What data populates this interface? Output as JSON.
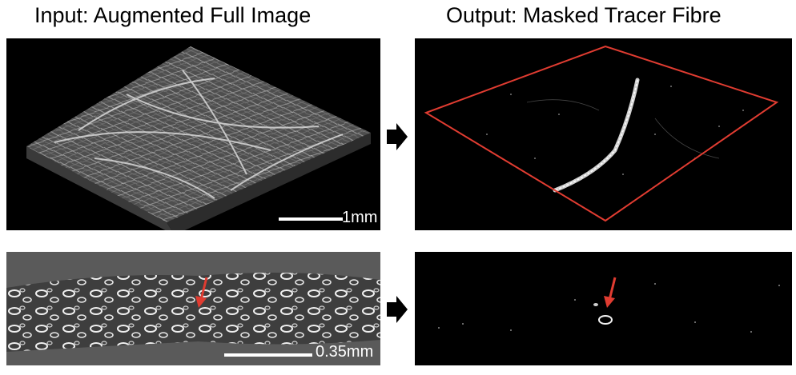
{
  "titles": {
    "input": "Input: Augmented Full Image",
    "output": "Output: Masked Tracer Fibre"
  },
  "scale_bars": {
    "top": "1mm",
    "bottom": "0.35mm"
  },
  "colors": {
    "highlight": "#e03c31",
    "panel_bg": "#000000",
    "slice_bg": "#5a5a5a"
  },
  "icons": {
    "flow_arrow": "right-arrow-icon",
    "indicator": "down-arrow-icon"
  }
}
